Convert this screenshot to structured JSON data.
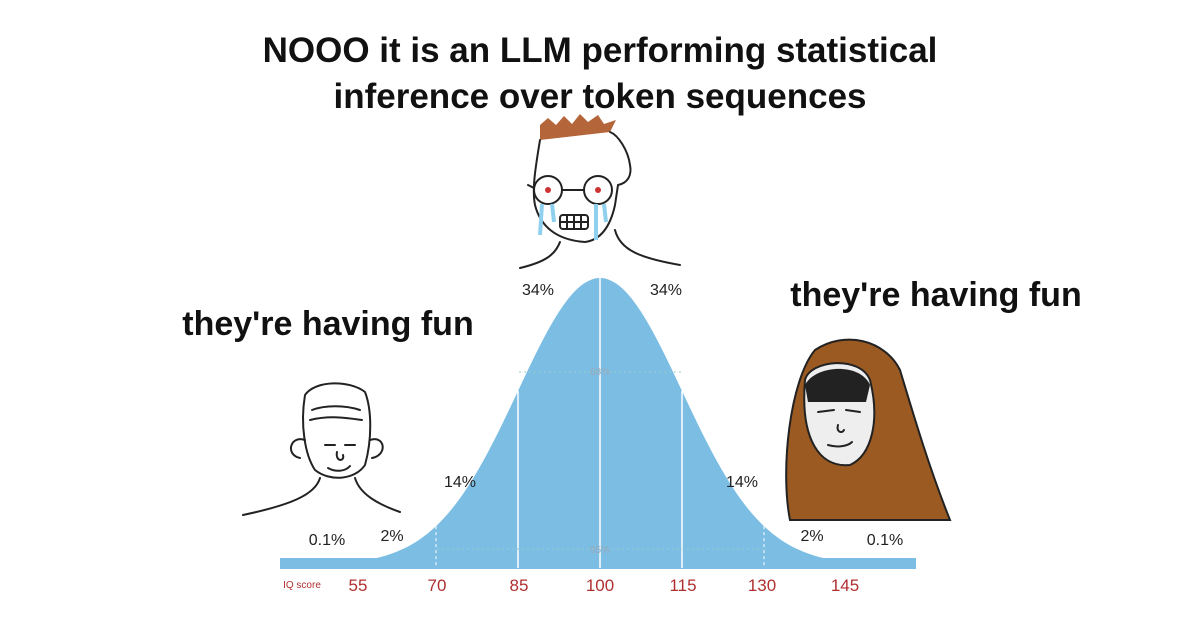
{
  "title_lines": [
    "NOOO it is an LLM performing statistical",
    "inference over token sequences"
  ],
  "left_caption": "they're having fun",
  "right_caption": "they're having fun",
  "curve": {
    "segment_labels": [
      "0.1%",
      "2%",
      "14%",
      "34%",
      "34%",
      "14%",
      "2%",
      "0.1%"
    ],
    "band_labels": [
      "68%",
      "95%"
    ],
    "axis_label": "IQ score",
    "scores": [
      "55",
      "70",
      "85",
      "100",
      "115",
      "130",
      "145"
    ]
  }
}
